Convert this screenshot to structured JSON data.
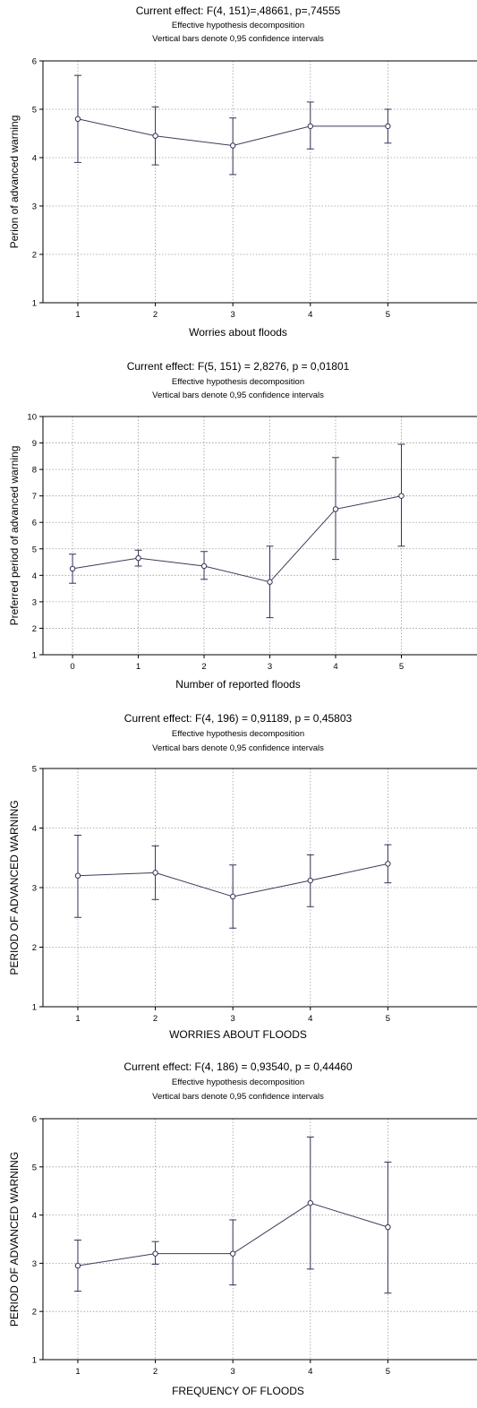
{
  "chart_data": [
    {
      "type": "line",
      "title": "Current effect: F(4, 151)=,48661, p=,74555",
      "subtitle1": "Effective hypothesis decomposition",
      "subtitle2": "Vertical bars denote 0,95 confidence intervals",
      "xlabel": "Worries about floods",
      "ylabel": "Perion of advanced warning",
      "categories": [
        "1",
        "2",
        "3",
        "4",
        "5"
      ],
      "yticks": [
        "1",
        "2",
        "3",
        "4",
        "5",
        "6"
      ],
      "ylim": [
        1,
        6
      ],
      "grid": true,
      "series": [
        {
          "values": [
            4.8,
            4.45,
            4.25,
            4.65,
            4.65
          ],
          "ci_low": [
            3.9,
            3.85,
            3.65,
            4.18,
            4.3
          ],
          "ci_high": [
            5.7,
            5.05,
            4.82,
            5.15,
            5.0
          ]
        }
      ]
    },
    {
      "type": "line",
      "title": "Current effect: F(5, 151) = 2,8276, p = 0,01801",
      "subtitle1": "Effective hypothesis decomposition",
      "subtitle2": "Vertical bars denote 0,95 confidence intervals",
      "xlabel": "Number of reported floods",
      "ylabel": "Preferred period of advanced warning",
      "categories": [
        "0",
        "1",
        "2",
        "3",
        "4",
        "5"
      ],
      "yticks": [
        "1",
        "2",
        "3",
        "4",
        "5",
        "6",
        "7",
        "8",
        "9",
        "10"
      ],
      "ylim": [
        1,
        10
      ],
      "grid": true,
      "series": [
        {
          "values": [
            4.25,
            4.65,
            4.35,
            3.75,
            6.5,
            7.0
          ],
          "ci_low": [
            3.7,
            4.35,
            3.85,
            2.4,
            4.6,
            5.1
          ],
          "ci_high": [
            4.8,
            4.95,
            4.9,
            5.1,
            8.45,
            8.95
          ]
        }
      ]
    },
    {
      "type": "line",
      "title": "Current effect: F(4, 196) = 0,91189, p = 0,45803",
      "subtitle1": "Effective hypothesis decomposition",
      "subtitle2": "Vertical bars denote 0,95 confidence intervals",
      "xlabel": "WORRIES ABOUT FLOODS",
      "ylabel": "PERIOD OF ADVANCED WARNING",
      "categories": [
        "1",
        "2",
        "3",
        "4",
        "5"
      ],
      "yticks": [
        "1",
        "2",
        "3",
        "4",
        "5"
      ],
      "ylim": [
        1,
        5
      ],
      "grid": true,
      "series": [
        {
          "values": [
            3.2,
            3.25,
            2.85,
            3.12,
            3.4
          ],
          "ci_low": [
            2.5,
            2.8,
            2.32,
            2.68,
            3.08
          ],
          "ci_high": [
            3.88,
            3.7,
            3.38,
            3.55,
            3.72
          ]
        }
      ]
    },
    {
      "type": "line",
      "title": "Current effect: F(4, 186) = 0,93540, p = 0,44460",
      "subtitle1": "Effective hypothesis decomposition",
      "subtitle2": "Vertical bars denote 0,95 confidence intervals",
      "xlabel": "FREQUENCY OF FLOODS",
      "ylabel": "PERIOD OF ADVANCED WARNING",
      "categories": [
        "1",
        "2",
        "3",
        "4",
        "5"
      ],
      "yticks": [
        "1",
        "2",
        "3",
        "4",
        "5",
        "6"
      ],
      "ylim": [
        1,
        6
      ],
      "grid": true,
      "series": [
        {
          "values": [
            2.95,
            3.2,
            3.2,
            4.25,
            3.75
          ],
          "ci_low": [
            2.42,
            2.98,
            2.55,
            2.88,
            2.38
          ],
          "ci_high": [
            3.48,
            3.45,
            3.9,
            5.62,
            5.1
          ]
        }
      ]
    }
  ]
}
